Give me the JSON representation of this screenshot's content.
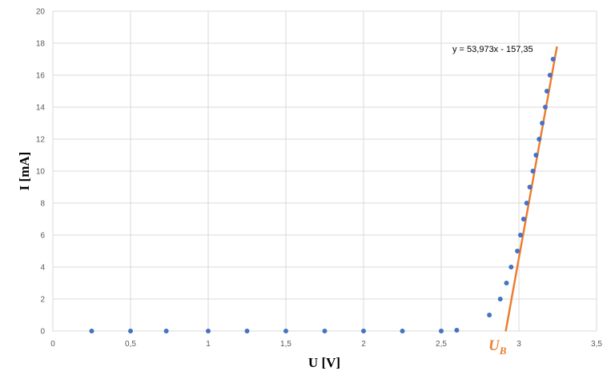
{
  "chart_data": {
    "type": "scatter",
    "xlabel": "U [V]",
    "ylabel": "I [mA]",
    "xlim": [
      0,
      3.5
    ],
    "ylim": [
      0,
      20
    ],
    "x_ticks": [
      "0",
      "0,5",
      "1",
      "1,5",
      "2",
      "2,5",
      "3",
      "3,5"
    ],
    "y_ticks": [
      "0",
      "2",
      "4",
      "6",
      "8",
      "10",
      "12",
      "14",
      "16",
      "18",
      "20"
    ],
    "grid": true,
    "series": [
      {
        "color": "#4472C4",
        "points": [
          {
            "x": 0.25,
            "y": 0
          },
          {
            "x": 0.5,
            "y": 0
          },
          {
            "x": 0.73,
            "y": 0
          },
          {
            "x": 1.0,
            "y": 0
          },
          {
            "x": 1.25,
            "y": 0
          },
          {
            "x": 1.5,
            "y": 0
          },
          {
            "x": 1.75,
            "y": 0
          },
          {
            "x": 2.0,
            "y": 0
          },
          {
            "x": 2.25,
            "y": 0
          },
          {
            "x": 2.5,
            "y": 0
          },
          {
            "x": 2.6,
            "y": 0.05
          },
          {
            "x": 2.81,
            "y": 1
          },
          {
            "x": 2.88,
            "y": 2
          },
          {
            "x": 2.92,
            "y": 3
          },
          {
            "x": 2.95,
            "y": 4
          },
          {
            "x": 2.99,
            "y": 5
          },
          {
            "x": 3.01,
            "y": 6
          },
          {
            "x": 3.03,
            "y": 7
          },
          {
            "x": 3.05,
            "y": 8
          },
          {
            "x": 3.07,
            "y": 9
          },
          {
            "x": 3.09,
            "y": 10
          },
          {
            "x": 3.11,
            "y": 11
          },
          {
            "x": 3.13,
            "y": 12
          },
          {
            "x": 3.15,
            "y": 13
          },
          {
            "x": 3.17,
            "y": 14
          },
          {
            "x": 3.18,
            "y": 15
          },
          {
            "x": 3.2,
            "y": 16
          },
          {
            "x": 3.22,
            "y": 17
          }
        ]
      }
    ],
    "trendline": {
      "color": "#ED7D31",
      "slope": 53.973,
      "intercept": -157.35,
      "x_range": [
        2.915,
        3.245
      ],
      "equation_label": "y = 53,973x - 157,35"
    },
    "annotations": {
      "ub_main": "U",
      "ub_sub": "B",
      "ub_color": "#ED7D31",
      "ub_x": 2.86
    }
  }
}
